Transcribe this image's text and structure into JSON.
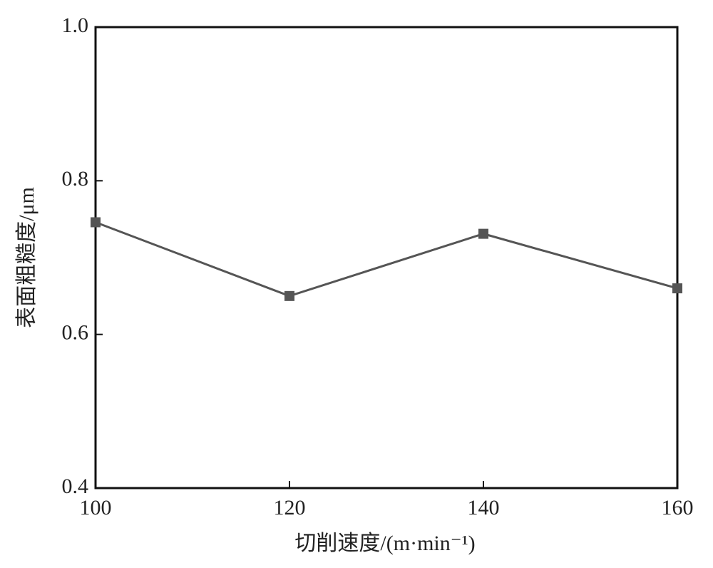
{
  "chart_data": {
    "type": "line",
    "xlabel": "切削速度/(m·min⁻¹)",
    "ylabel": "表面粗糙度/μm",
    "x": [
      100,
      120,
      140,
      160
    ],
    "series": [
      {
        "color": "#555555",
        "values": [
          0.746,
          0.65,
          0.731,
          0.66
        ]
      }
    ],
    "xlim": [
      100,
      160
    ],
    "xticks": [
      100,
      120,
      140,
      160
    ],
    "ylim": [
      0.4,
      1
    ],
    "yticks": [
      0.4,
      0.6,
      0.8,
      {
        "value": 1,
        "label": "1.0"
      }
    ],
    "grid": false
  }
}
